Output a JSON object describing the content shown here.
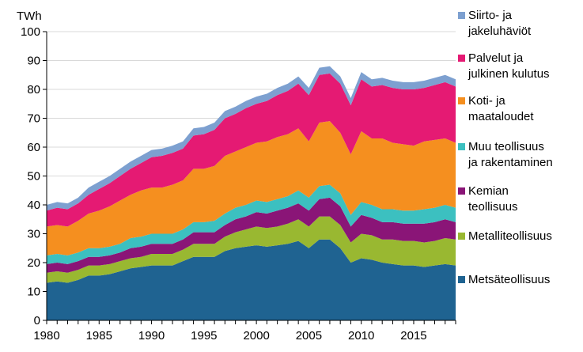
{
  "chart_data": {
    "type": "area",
    "stacked": true,
    "unit": "TWh",
    "ylim": [
      0,
      100
    ],
    "yticks": [
      0,
      10,
      20,
      30,
      40,
      50,
      60,
      70,
      80,
      90,
      100
    ],
    "xticks": [
      1980,
      1985,
      1990,
      1995,
      2000,
      2005,
      2010,
      2015
    ],
    "x": [
      1980,
      1981,
      1982,
      1983,
      1984,
      1985,
      1986,
      1987,
      1988,
      1989,
      1990,
      1991,
      1992,
      1993,
      1994,
      1995,
      1996,
      1997,
      1998,
      1999,
      2000,
      2001,
      2002,
      2003,
      2004,
      2005,
      2006,
      2007,
      2008,
      2009,
      2010,
      2011,
      2012,
      2013,
      2014,
      2015,
      2016,
      2017,
      2018,
      2019
    ],
    "series": [
      {
        "name": "Metsäteollisuus",
        "color": "#1f6391",
        "values": [
          13,
          13.5,
          13,
          14,
          15.5,
          15.5,
          16,
          17,
          18,
          18.5,
          19,
          19,
          19,
          20.5,
          22,
          22,
          22,
          24,
          25,
          25.5,
          26,
          25.5,
          26,
          26.5,
          27.5,
          25,
          28,
          28,
          25,
          20,
          21.5,
          21,
          20,
          19.5,
          19,
          19,
          18.5,
          19,
          19.5,
          19
        ]
      },
      {
        "name": "Metalliteollisuus",
        "color": "#99b831",
        "values": [
          3.5,
          3.5,
          3.5,
          3.5,
          3.5,
          3.5,
          3.5,
          3.5,
          3.5,
          3.5,
          4,
          4,
          4,
          4,
          4.5,
          4.5,
          4.5,
          5,
          5.5,
          6,
          6.5,
          6.5,
          6.5,
          7,
          7.5,
          7.5,
          8,
          8,
          8,
          7,
          8.5,
          8.5,
          8,
          8.5,
          8.5,
          8.5,
          8.5,
          8.5,
          9,
          9
        ]
      },
      {
        "name": "Kemian teollisuus",
        "color": "#8a1577",
        "values": [
          3,
          3,
          3,
          3,
          3,
          3,
          3,
          3,
          3.5,
          3.5,
          3.5,
          3.5,
          3.5,
          3.5,
          4,
          4,
          4,
          4,
          4.5,
          4.5,
          5,
          5,
          5.5,
          5.5,
          5.5,
          5.5,
          6,
          6.5,
          6.5,
          5.5,
          6.5,
          6,
          6,
          6,
          6,
          6,
          6.5,
          6.5,
          6.5,
          6
        ]
      },
      {
        "name": "Muu teollisuus ja rakentaminen",
        "color": "#3cc0c0",
        "values": [
          3,
          3,
          3,
          3,
          3,
          3,
          3,
          3,
          3.5,
          3.5,
          3.5,
          3.5,
          3.5,
          3.5,
          3.5,
          3.5,
          4,
          4,
          4,
          4,
          4,
          4,
          4,
          4,
          4.5,
          4.5,
          4.5,
          4.5,
          4.5,
          4,
          4.5,
          4.5,
          4.5,
          4.5,
          4.5,
          4.5,
          5,
          5,
          5,
          5
        ]
      },
      {
        "name": "Koti- ja maataloudet",
        "color": "#f58f1f",
        "values": [
          10,
          10,
          10,
          11,
          12,
          13,
          14,
          15,
          15,
          16,
          16,
          16,
          17,
          17,
          18.5,
          18.5,
          19,
          20,
          19.5,
          20,
          20,
          21,
          21.5,
          21.5,
          21.5,
          19.5,
          22,
          22,
          21,
          21,
          24.5,
          23,
          24.5,
          23,
          23,
          22.5,
          23.5,
          23.5,
          23,
          22.5
        ]
      },
      {
        "name": "Palvelut ja julkinen kulutus",
        "color": "#e51a73",
        "values": [
          5.5,
          6,
          6,
          6,
          6.5,
          7.5,
          8,
          8.5,
          9,
          9.5,
          10.5,
          11,
          11,
          11,
          11.5,
          12,
          12.5,
          13,
          13,
          13.5,
          13.5,
          14,
          14.5,
          15,
          15.5,
          16,
          16.5,
          16.5,
          17,
          17,
          18,
          18,
          18.5,
          19,
          19,
          19.5,
          18.5,
          19,
          19.5,
          19.5
        ]
      },
      {
        "name": "Siirto- ja jakeluhäviöt",
        "color": "#7da0d0",
        "values": [
          2,
          2,
          2,
          2,
          2.5,
          2.5,
          2.5,
          2.5,
          2.5,
          2.5,
          2.5,
          2.5,
          2.5,
          2.5,
          2.5,
          2.5,
          2.5,
          2.5,
          2.5,
          2.5,
          2.5,
          2.5,
          2.5,
          2.5,
          2.5,
          2.5,
          2.5,
          2.5,
          2.5,
          2.5,
          2.5,
          2.5,
          2.5,
          2.5,
          2.5,
          2.5,
          2.5,
          2.5,
          2.5,
          2.5
        ]
      }
    ],
    "legend": [
      {
        "lines": [
          "Siirto- ja",
          "jakeluhäviöt"
        ],
        "series": "Siirto- ja jakeluhäviöt"
      },
      {
        "lines": [
          "Palvelut ja",
          "julkinen kulutus"
        ],
        "series": "Palvelut ja julkinen kulutus"
      },
      {
        "lines": [
          "Koti- ja",
          "maataloudet"
        ],
        "series": "Koti- ja maataloudet"
      },
      {
        "lines": [
          "Muu teollisuus",
          "ja rakentaminen"
        ],
        "series": "Muu teollisuus ja rakentaminen"
      },
      {
        "lines": [
          "Kemian",
          "teollisuus"
        ],
        "series": "Kemian teollisuus"
      },
      {
        "lines": [
          "Metalliteollisuus"
        ],
        "series": "Metalliteollisuus"
      },
      {
        "lines": [
          "Metsäteollisuus"
        ],
        "series": "Metsäteollisuus"
      }
    ],
    "legend_placement": "right"
  }
}
